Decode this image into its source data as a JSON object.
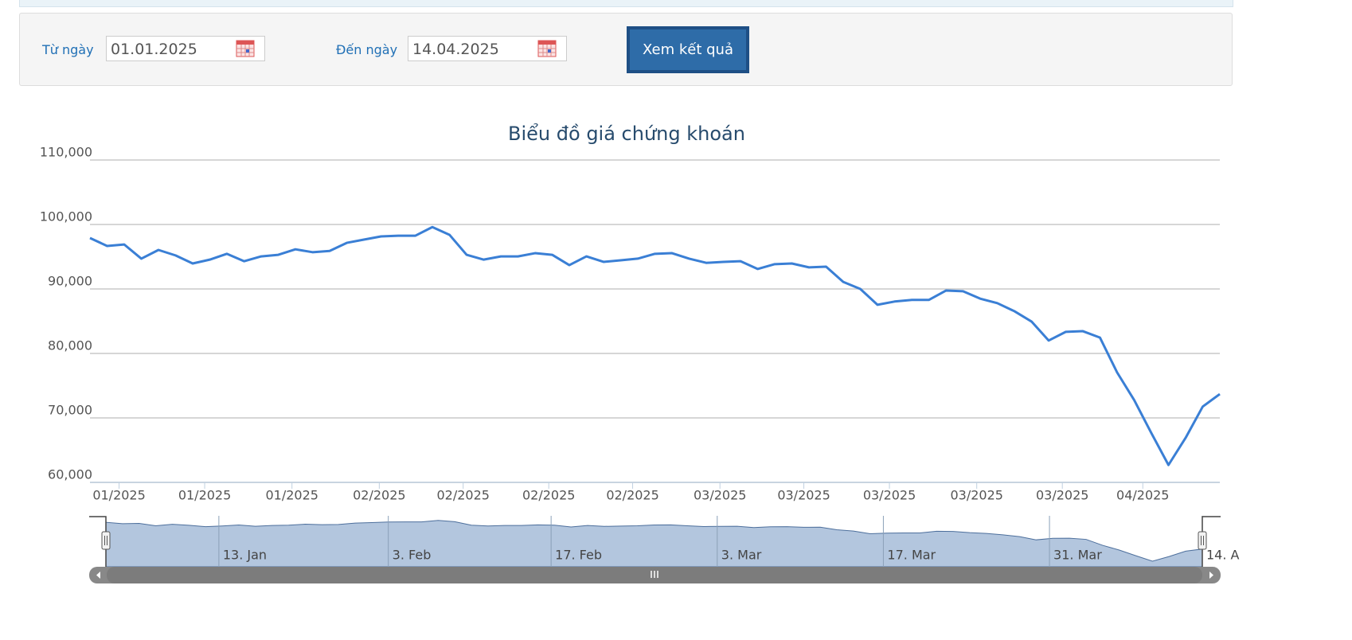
{
  "form": {
    "from_label": "Từ ngày",
    "from_value": "01.01.2025",
    "to_label": "Đến ngày",
    "to_value": "14.04.2025",
    "button": "Xem kết quả"
  },
  "chart_data": {
    "type": "line",
    "title": "Biểu đồ giá chứng khoán",
    "xlim": [
      0,
      66
    ],
    "xticks": [
      {
        "value": 1.7,
        "label": "01/2025"
      },
      {
        "value": 6.7,
        "label": "01/2025"
      },
      {
        "value": 11.8,
        "label": "01/2025"
      },
      {
        "value": 16.9,
        "label": "02/2025"
      },
      {
        "value": 21.8,
        "label": "02/2025"
      },
      {
        "value": 26.8,
        "label": "02/2025"
      },
      {
        "value": 31.7,
        "label": "02/2025"
      },
      {
        "value": 36.8,
        "label": "03/2025"
      },
      {
        "value": 41.7,
        "label": "03/2025"
      },
      {
        "value": 46.7,
        "label": "03/2025"
      },
      {
        "value": 51.8,
        "label": "03/2025"
      },
      {
        "value": 56.8,
        "label": "03/2025"
      },
      {
        "value": 61.5,
        "label": "04/2025"
      }
    ],
    "ylim": [
      60000,
      110000
    ],
    "yticks": [
      {
        "value": 60000,
        "label": "60,000"
      },
      {
        "value": 70000,
        "label": "70,000"
      },
      {
        "value": 80000,
        "label": "80,000"
      },
      {
        "value": 90000,
        "label": "90,000"
      },
      {
        "value": 100000,
        "label": "100,000"
      },
      {
        "value": 110000,
        "label": "110,000"
      }
    ],
    "grid": true,
    "series": [
      {
        "color": "#3a7fd5",
        "values": [
          97900,
          96670,
          96900,
          94700,
          96050,
          95200,
          93950,
          94550,
          95450,
          94300,
          95050,
          95300,
          96150,
          95700,
          95900,
          97150,
          97650,
          98150,
          98250,
          98250,
          99600,
          98400,
          95300,
          94550,
          95050,
          95050,
          95550,
          95300,
          93700,
          95050,
          94200,
          94450,
          94700,
          95450,
          95550,
          94700,
          94050,
          94200,
          94300,
          93100,
          93850,
          93950,
          93350,
          93450,
          91100,
          90000,
          87550,
          88050,
          88300,
          88300,
          89750,
          89650,
          88500,
          87800,
          86550,
          84950,
          82000,
          83350,
          83450,
          82450,
          77050,
          72750,
          67650,
          62700,
          66900,
          71750,
          73700
        ]
      }
    ],
    "navigator": {
      "xticks": [
        {
          "value": 6.8,
          "label": "13. Jan"
        },
        {
          "value": 17.0,
          "label": "3. Feb"
        },
        {
          "value": 26.8,
          "label": "17. Feb"
        },
        {
          "value": 36.8,
          "label": "3. Mar"
        },
        {
          "value": 46.8,
          "label": "17. Mar"
        },
        {
          "value": 56.8,
          "label": "31. Mar"
        },
        {
          "value": 66.0,
          "label": "14. A"
        }
      ]
    }
  }
}
